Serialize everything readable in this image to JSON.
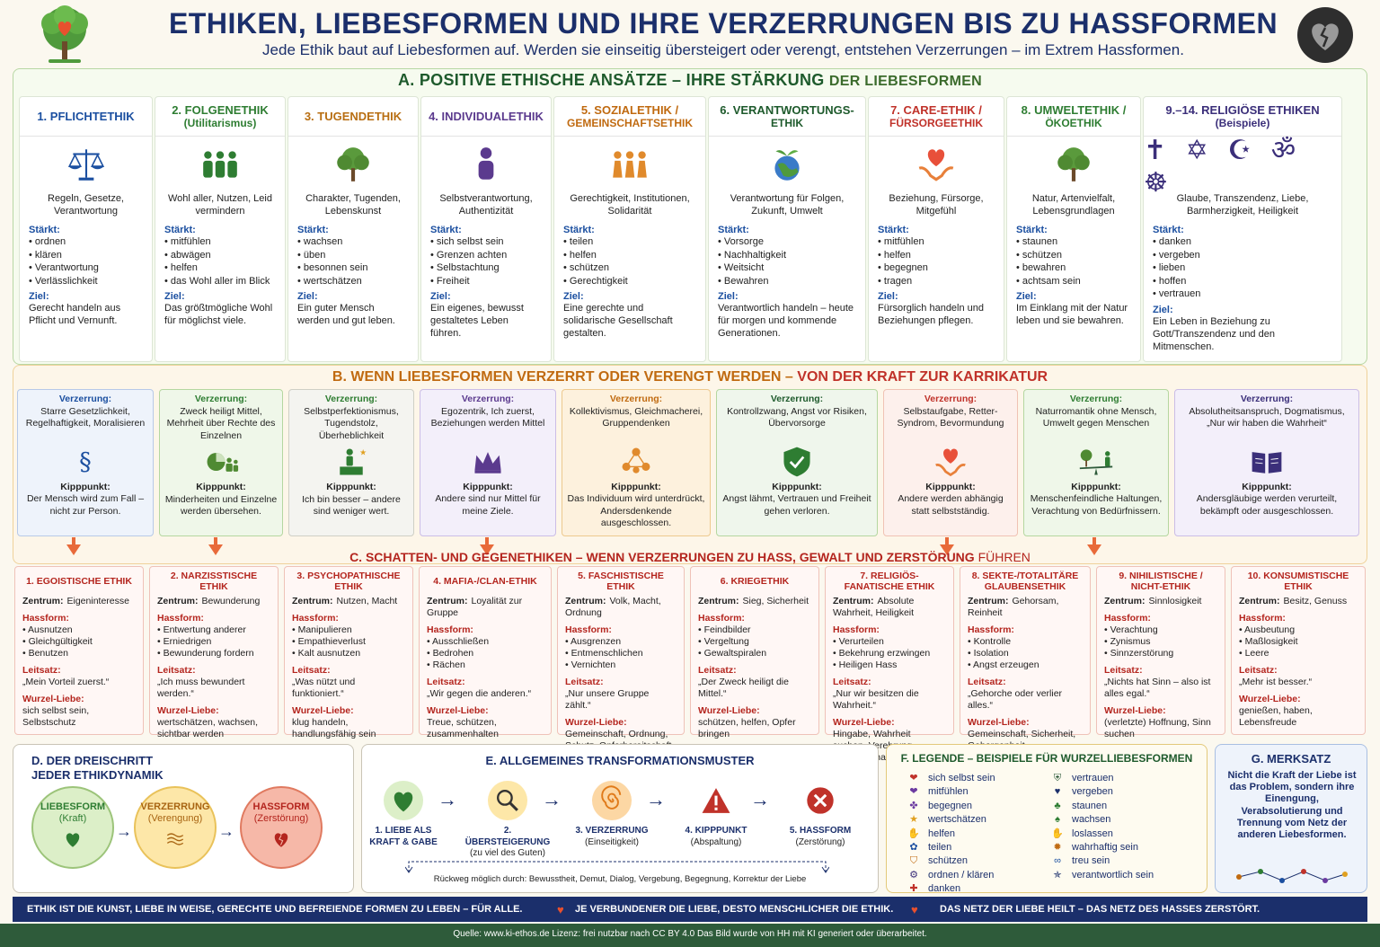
{
  "title": "ETHIKEN, LIEBESFORMEN UND IHRE VERZERRUNGEN BIS ZU HASSFORMEN",
  "subtitle": "Jede Ethik baut auf Liebesformen auf. Werden sie einseitig übersteigert oder verengt, entstehen Verzerrungen – im Extrem Hassformen.",
  "sectionA": {
    "title_main": "A. POSITIVE ETHISCHE ANSÄTZE – IHRE STÄRKUNG",
    "title_sub": "DER LIEBESFORMEN",
    "strengthens_label": "Stärkt:",
    "goal_label": "Ziel:",
    "columns": [
      {
        "title": "1. PFLICHTETHIK",
        "sub": "",
        "icon": "scales-icon",
        "desc": "Regeln, Gesetze, Verantwortung",
        "items": [
          "ordnen",
          "klären",
          "Verantwortung",
          "Verlässlichkeit"
        ],
        "goal": "Gerecht handeln aus Pflicht und Vernunft.",
        "color": "#1b4fa0"
      },
      {
        "title": "2. FOLGENETHIK",
        "sub": "(Utilitarismus)",
        "icon": "people-icon",
        "desc": "Wohl aller, Nutzen, Leid vermindern",
        "items": [
          "mitfühlen",
          "abwägen",
          "helfen",
          "das Wohl aller im Blick"
        ],
        "goal": "Das größtmögliche Wohl für möglichst viele.",
        "color": "#2e7d32"
      },
      {
        "title": "3. TUGENDETHIK",
        "sub": "",
        "icon": "tree-icon",
        "desc": "Charakter, Tugenden, Lebenskunst",
        "items": [
          "wachsen",
          "üben",
          "besonnen sein",
          "wertschätzen"
        ],
        "goal": "Ein guter Mensch werden und gut leben.",
        "color": "#b86e12"
      },
      {
        "title": "4. INDIVIDUALETHIK",
        "sub": "",
        "icon": "person-icon",
        "desc": "Selbstverantwortung, Authentizität",
        "items": [
          "sich selbst sein",
          "Grenzen achten",
          "Selbstachtung",
          "Freiheit"
        ],
        "goal": "Ein eigenes, bewusst gestaltetes Leben führen.",
        "color": "#5b3a8e"
      },
      {
        "title": "5. SOZIALETHIK /",
        "sub": "GEMEINSCHAFTSETHIK",
        "icon": "group-icon",
        "desc": "Gerechtigkeit, Institutionen, Solidarität",
        "items": [
          "teilen",
          "helfen",
          "schützen",
          "Gerechtigkeit"
        ],
        "goal": "Eine gerechte und solidarische Gesellschaft gestalten.",
        "color": "#c06a10"
      },
      {
        "title": "6. VERANTWORTUNGS-",
        "sub": "ETHIK",
        "icon": "globe-icon",
        "desc": "Verantwortung für Folgen, Zukunft, Umwelt",
        "items": [
          "Vorsorge",
          "Nachhaltigkeit",
          "Weitsicht",
          "Bewahren"
        ],
        "goal": "Verantwortlich handeln – heute für morgen und kommende Generationen.",
        "color": "#1e5a2c"
      },
      {
        "title": "7. CARE-ETHIK /",
        "sub": "FÜRSORGEETHIK",
        "icon": "heart-hands-icon",
        "desc": "Beziehung, Fürsorge, Mitgefühl",
        "items": [
          "mitfühlen",
          "helfen",
          "begegnen",
          "tragen"
        ],
        "goal": "Fürsorglich handeln und Beziehungen pflegen.",
        "color": "#c0322a"
      },
      {
        "title": "8. UMWELTETHIK /",
        "sub": "ÖKOETHIK",
        "icon": "tree-icon",
        "desc": "Natur, Artenvielfalt, Lebensgrundlagen",
        "items": [
          "staunen",
          "schützen",
          "bewahren",
          "achtsam sein"
        ],
        "goal": "Im Einklang mit der Natur leben und sie bewahren.",
        "color": "#2e7d32"
      },
      {
        "title": "9.–14. RELIGIÖSE ETHIKEN",
        "sub": "(Beispiele)",
        "icon": "religion-symbols-icon",
        "desc": "Glaube, Transzendenz, Liebe, Barmherzigkeit, Heiligkeit",
        "items": [
          "danken",
          "vergeben",
          "lieben",
          "hoffen",
          "vertrauen"
        ],
        "goal": "Ein Leben in Beziehung zu Gott/Transzendenz und den Mitmenschen.",
        "color": "#3b2f7a",
        "symbols": "✝ ✡ ☪ ॐ ☸"
      }
    ]
  },
  "sectionB": {
    "title_main": "B. WENN LIEBESFORMEN VERZERRT ODER VERENGT WERDEN –",
    "title_sub": "VON DER KRAFT ZUR KARRIKATUR",
    "distortion_label": "Verzerrung:",
    "tipping_label": "Kipppunkt:",
    "columns": [
      {
        "distortion": "Starre Gesetzlichkeit, Regelhaftigkeit, Moralisieren",
        "icon": "paragraph-icon",
        "tipping": "Der Mensch wird zum Fall – nicht zur Person.",
        "bg": "#eef3fb",
        "bd": "#b7c9e8",
        "tc": "#1b4fa0"
      },
      {
        "distortion": "Zweck heiligt Mittel, Mehrheit über Rechte des Einzelnen",
        "icon": "pie-chart-icon",
        "tipping": "Minderheiten und Einzelne werden übersehen.",
        "bg": "#eff7e9",
        "bd": "#b5d7a0",
        "tc": "#2e7d32"
      },
      {
        "distortion": "Selbstperfektionismus, Tugendstolz, Überheblichkeit",
        "icon": "podium-icon",
        "tipping": "Ich bin besser – andere sind weniger wert.",
        "bg": "#f4f4f0",
        "bd": "#cfcfc5",
        "tc": "#2e7d32"
      },
      {
        "distortion": "Egozentrik, Ich zuerst, Beziehungen werden Mittel",
        "icon": "crown-icon",
        "tipping": "Andere sind nur Mittel für meine Ziele.",
        "bg": "#f3effa",
        "bd": "#cbbde6",
        "tc": "#5b3a8e"
      },
      {
        "distortion": "Kollektivismus, Gleichmacherei, Gruppendenken",
        "icon": "network-icon",
        "tipping": "Das Individuum wird unterdrückt, Andersdenkende ausgeschlossen.",
        "bg": "#fdf1dd",
        "bd": "#edc98e",
        "tc": "#c06a10"
      },
      {
        "distortion": "Kontrollzwang, Angst vor Risiken, Übervorsorge",
        "icon": "shield-icon",
        "tipping": "Angst lähmt, Vertrauen und Freiheit gehen verloren.",
        "bg": "#eff6ec",
        "bd": "#b5d7a0",
        "tc": "#1e5a2c"
      },
      {
        "distortion": "Selbstaufgabe, Retter-Syndrom, Bevormundung",
        "icon": "heart-hands-icon",
        "tipping": "Andere werden abhängig statt selbstständig.",
        "bg": "#fdf0ec",
        "bd": "#f0c2b4",
        "tc": "#c0322a"
      },
      {
        "distortion": "Naturromantik ohne Mensch, Umwelt gegen Menschen",
        "icon": "seesaw-icon",
        "tipping": "Menschenfeindliche Haltungen, Verachtung von Bedürfnissern.",
        "bg": "#eff7e9",
        "bd": "#b5d7a0",
        "tc": "#2e7d32"
      },
      {
        "distortion": "Absolutheitsanspruch, Dogmatismus, „Nur wir haben die Wahrheit“",
        "icon": "book-icon",
        "tipping": "Andersgläubige werden verurteilt, bekämpft oder ausgeschlossen.",
        "bg": "#f3effa",
        "bd": "#cbbde6",
        "tc": "#3b2f7a"
      }
    ]
  },
  "sectionC": {
    "title_main": "C. SCHATTEN- UND GEGENETHIKEN – WENN VERZERRUNGEN ZU HASS, GEWALT UND ZERSTÖRUNG",
    "title_sub": "FÜHREN",
    "center_label": "Zentrum:",
    "hate_label": "Hassform:",
    "motto_label": "Leitsatz:",
    "root_label": "Wurzel-Liebe:",
    "columns": [
      {
        "title": "1. EGOISTISCHE ETHIK",
        "center": "Eigeninteresse",
        "hate": [
          "Ausnutzen",
          "Gleichgültigkeit",
          "Benutzen"
        ],
        "motto": "„Mein Vorteil zuerst.“",
        "root": "sich selbst sein, Selbstschutz"
      },
      {
        "title": "2. NARZISSTISCHE ETHIK",
        "center": "Bewunderung",
        "hate": [
          "Entwertung anderer",
          "Erniedrigen",
          "Bewunderung fordern"
        ],
        "motto": "„Ich muss bewundert werden.“",
        "root": "wertschätzen, wachsen, sichtbar werden"
      },
      {
        "title": "3. PSYCHOPATHISCHE ETHIK",
        "center": "Nutzen, Macht",
        "hate": [
          "Manipulieren",
          "Empathieverlust",
          "Kalt ausnutzen"
        ],
        "motto": "„Was nützt und funktioniert.“",
        "root": "klug handeln, handlungsfähig sein"
      },
      {
        "title": "4. MAFIA-/CLAN-ETHIK",
        "center": "Loyalität zur Gruppe",
        "hate": [
          "Ausschließen",
          "Bedrohen",
          "Rächen"
        ],
        "motto": "„Wir gegen die anderen.“",
        "root": "Treue, schützen, zusammenhalten"
      },
      {
        "title": "5. FASCHISTISCHE ETHIK",
        "center": "Volk, Macht, Ordnung",
        "hate": [
          "Ausgrenzen",
          "Entmenschlichen",
          "Vernichten"
        ],
        "motto": "„Nur unsere Gruppe zählt.“",
        "root": "Gemeinschaft, Ordnung, Schutz, Opferbereitschaft"
      },
      {
        "title": "6. KRIEGETHIK",
        "center": "Sieg, Sicherheit",
        "hate": [
          "Feindbilder",
          "Vergeltung",
          "Gewaltspiralen"
        ],
        "motto": "„Der Zweck heiligt die Mittel.“",
        "root": "schützen, helfen, Opfer bringen"
      },
      {
        "title": "7. RELIGIÖS-FANATISCHE ETHIK",
        "center": "Absolute Wahrheit, Heiligkeit",
        "hate": [
          "Verurteilen",
          "Bekehrung erzwingen",
          "Heiligen Hass"
        ],
        "motto": "„Nur wir besitzen die Wahrheit.“",
        "root": "Hingabe, Wahrheit suchen, Verehrung, Gemeinschaft"
      },
      {
        "title": "8. SEKTE-/TOTALITÄRE GLAUBENSETHIK",
        "center": "Gehorsam, Reinheit",
        "hate": [
          "Kontrolle",
          "Isolation",
          "Angst erzeugen"
        ],
        "motto": "„Gehorche oder verlier alles.“",
        "root": "Gemeinschaft, Sicherheit, Geborgenheit"
      },
      {
        "title": "9. NIHILISTISCHE / NICHT-ETHIK",
        "center": "Sinnlosigkeit",
        "hate": [
          "Verachtung",
          "Zynismus",
          "Sinnzerstörung"
        ],
        "motto": "„Nichts hat Sinn – also ist alles egal.“",
        "root": "(verletzte) Hoffnung, Sinn suchen"
      },
      {
        "title": "10. KONSUMISTISCHE ETHIK",
        "center": "Besitz, Genuss",
        "hate": [
          "Ausbeutung",
          "Maßlosigkeit",
          "Leere"
        ],
        "motto": "„Mehr ist besser.“",
        "root": "genießen, haben, Lebensfreude"
      }
    ]
  },
  "sectionD": {
    "title1": "D. DER DREISCHRITT",
    "title2": "JEDER ETHIKDYNAMIK",
    "steps": [
      {
        "name": "LIEBESFORM",
        "sub": "(Kraft)",
        "icon": "heart-icon",
        "bg": "#dcefc8",
        "bd": "#9cc47a",
        "tc": "#2e7d32"
      },
      {
        "name": "VERZERRUNG",
        "sub": "(Verengung)",
        "icon": "waves-icon",
        "bg": "#fde7a8",
        "bd": "#e9c25a",
        "tc": "#a86412"
      },
      {
        "name": "HASSFORM",
        "sub": "(Zerstörung)",
        "icon": "broken-heart-icon",
        "bg": "#f6b8a8",
        "bd": "#e07a60",
        "tc": "#b4251e"
      }
    ]
  },
  "sectionE": {
    "title": "E. ALLGEMEINES TRANSFORMATIONSMUSTER",
    "steps": [
      {
        "n": "1. LIEBE ALS",
        "n2": "KRAFT & GABE",
        "sub": "",
        "icon": "heart-icon",
        "bg": "#dcefc8"
      },
      {
        "n": "2. ÜBERSTEIGERUNG",
        "n2": "",
        "sub": "(zu viel des Guten)",
        "icon": "magnifier-icon",
        "bg": "#fde7a8"
      },
      {
        "n": "3. VERZERRUNG",
        "n2": "",
        "sub": "(Einseitigkeit)",
        "icon": "spiral-icon",
        "bg": "#fcd7a4"
      },
      {
        "n": "4. KIPPPUNKT",
        "n2": "",
        "sub": "(Abspaltung)",
        "icon": "warning-icon",
        "bg": "#ffffff"
      },
      {
        "n": "5. HASSFORM",
        "n2": "",
        "sub": "(Zerstörung)",
        "icon": "x-circle-icon",
        "bg": "#ffffff"
      }
    ],
    "return_path": "Rückweg möglich durch: Bewusstheit, Demut, Dialog, Vergebung, Begegnung, Korrektur der Liebe"
  },
  "sectionF": {
    "title": "F. LEGENDE – BEISPIELE FÜR WURZELLIEBESFORMEN",
    "left": [
      {
        "icon": "heart-icon",
        "g": "❤",
        "c": "#c0322a",
        "label": "sich selbst sein"
      },
      {
        "icon": "heart-purple-icon",
        "g": "❤",
        "c": "#6b3aa0",
        "label": "mitfühlen"
      },
      {
        "icon": "people-icon",
        "g": "✤",
        "c": "#6b3aa0",
        "label": "begegnen"
      },
      {
        "icon": "star-icon",
        "g": "★",
        "c": "#e0a020",
        "label": "wertschätzen"
      },
      {
        "icon": "hand-icon",
        "g": "✋",
        "c": "#2e7d32",
        "label": "helfen"
      },
      {
        "icon": "share-icon",
        "g": "✿",
        "c": "#1b4fa0",
        "label": "teilen"
      },
      {
        "icon": "shield-icon",
        "g": "⛉",
        "c": "#c06a10",
        "label": "schützen"
      },
      {
        "icon": "gear-icon",
        "g": "⚙",
        "c": "#3b2f7a",
        "label": "ordnen / klären"
      },
      {
        "icon": "gift-icon",
        "g": "✚",
        "c": "#c0322a",
        "label": "danken"
      }
    ],
    "right": [
      {
        "icon": "shield-heart-icon",
        "g": "⛨",
        "c": "#2e5b3a",
        "label": "vertrauen"
      },
      {
        "icon": "heart-blue-icon",
        "g": "♥",
        "c": "#1b2f6b",
        "label": "vergeben"
      },
      {
        "icon": "plant-icon",
        "g": "♣",
        "c": "#2e7d32",
        "label": "staunen"
      },
      {
        "icon": "sprout-icon",
        "g": "♠",
        "c": "#2e7d32",
        "label": "wachsen"
      },
      {
        "icon": "hands-icon",
        "g": "✋",
        "c": "#c06a10",
        "label": "loslassen"
      },
      {
        "icon": "sun-icon",
        "g": "✹",
        "c": "#c06a10",
        "label": "wahrhaftig sein"
      },
      {
        "icon": "link-icon",
        "g": "∞",
        "c": "#1b4fa0",
        "label": "treu sein"
      },
      {
        "icon": "person-star-icon",
        "g": "✯",
        "c": "#1b2f6b",
        "label": "verantwortlich sein"
      }
    ]
  },
  "sectionG": {
    "title": "G. MERKSATZ",
    "text": "Nicht die Kraft der Liebe ist das Problem, sondern ihre Einengung, Verabsolutierung und Trennung vom Netz der anderen Liebesformen."
  },
  "bottom": [
    "ETHIK IST DIE KUNST, LIEBE IN WEISE, GERECHTE UND BEFREIENDE FORMEN ZU LEBEN – FÜR ALLE.",
    "JE VERBUNDENER DIE LIEBE, DESTO MENSCHLICHER DIE ETHIK.",
    "DAS NETZ DER LIEBE HEILT – DAS NETZ DES HASSES ZERSTÖRT."
  ],
  "footer": "Quelle: www.ki-ethos.de Lizenz: frei nutzbar nach CC BY 4.0 Das Bild wurde von HH mit KI generiert oder überarbeitet.",
  "colors": {
    "navy": "#1b2f6b",
    "green": "#1e5a2c",
    "orange": "#c06a10",
    "red": "#b4251e"
  }
}
